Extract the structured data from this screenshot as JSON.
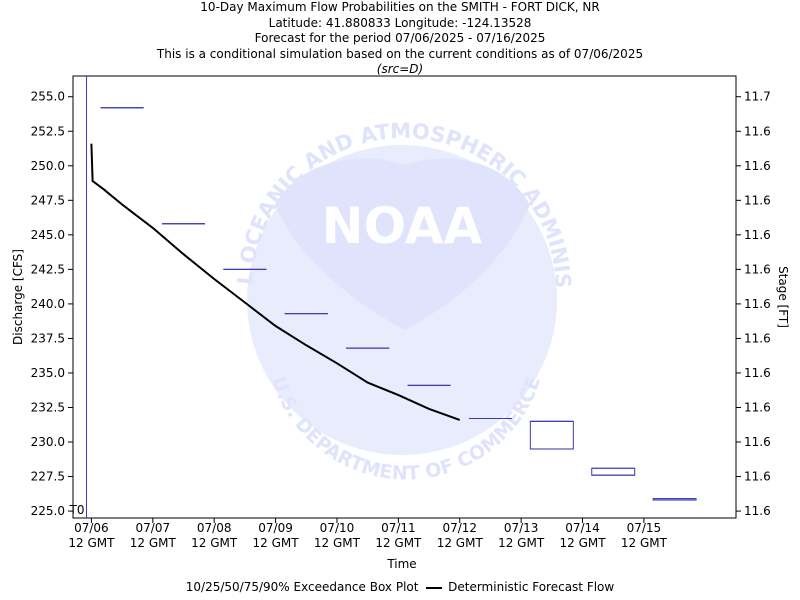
{
  "titles": [
    "10-Day Maximum Flow Probabilities on the SMITH - FORT DICK, NR",
    "Latitude: 41.880833 Longitude: -124.13528",
    "Forecast for the period 07/06/2025 - 07/16/2025",
    "This is a conditional simulation based on the current conditions as of 07/06/2025"
  ],
  "source_note": "(src=D)",
  "watermark": {
    "center_text": "NOAA",
    "ring_text": "NATIONAL OCEANIC AND ATMOSPHERIC ADMINISTRATION",
    "bottom_text": "U.S. DEPARTMENT OF COMMERCE",
    "color": "#dfe3fb"
  },
  "legend": {
    "boxplot_label": "10/25/50/75/90% Exceedance Box Plot",
    "line_label": "Deterministic Forecast Flow"
  },
  "chart_data": {
    "type": "line",
    "xlabel": "Time",
    "ylabel": "Discharge [CFS]",
    "y2label": "Stage [FT]",
    "ylim": [
      224.5,
      256.5
    ],
    "xlim": [
      -0.3,
      10.5
    ],
    "y_ticks": [
      225.0,
      227.5,
      230.0,
      232.5,
      235.0,
      237.5,
      240.0,
      242.5,
      245.0,
      247.5,
      250.0,
      252.5,
      255.0
    ],
    "y2_tick_labels": [
      "11.6",
      "11.6",
      "11.6",
      "11.6",
      "11.6",
      "11.6",
      "11.6",
      "11.6",
      "11.6",
      "11.6",
      "11.6",
      "11.6",
      "11.7"
    ],
    "x_ticks": [
      {
        "x": 0,
        "date": "07/06",
        "time": "12 GMT"
      },
      {
        "x": 1,
        "date": "07/07",
        "time": "12 GMT"
      },
      {
        "x": 2,
        "date": "07/08",
        "time": "12 GMT"
      },
      {
        "x": 3,
        "date": "07/09",
        "time": "12 GMT"
      },
      {
        "x": 4,
        "date": "07/10",
        "time": "12 GMT"
      },
      {
        "x": 5,
        "date": "07/11",
        "time": "12 GMT"
      },
      {
        "x": 6,
        "date": "07/12",
        "time": "12 GMT"
      },
      {
        "x": 7,
        "date": "07/13",
        "time": "12 GMT"
      },
      {
        "x": 8,
        "date": "07/14",
        "time": "12 GMT"
      },
      {
        "x": 9,
        "date": "07/15",
        "time": "12 GMT"
      }
    ],
    "t0_label": "T0",
    "t0_x": -0.08,
    "deterministic_flow": [
      {
        "x": 0.0,
        "y": 251.6
      },
      {
        "x": 0.02,
        "y": 248.9
      },
      {
        "x": 0.2,
        "y": 248.3
      },
      {
        "x": 0.5,
        "y": 247.2
      },
      {
        "x": 1.0,
        "y": 245.5
      },
      {
        "x": 1.5,
        "y": 243.6
      },
      {
        "x": 2.0,
        "y": 241.8
      },
      {
        "x": 2.5,
        "y": 240.1
      },
      {
        "x": 3.0,
        "y": 238.4
      },
      {
        "x": 3.5,
        "y": 237.0
      },
      {
        "x": 4.0,
        "y": 235.7
      },
      {
        "x": 4.5,
        "y": 234.3
      },
      {
        "x": 5.0,
        "y": 233.4
      },
      {
        "x": 5.5,
        "y": 232.4
      },
      {
        "x": 6.0,
        "y": 231.6
      }
    ],
    "boxplots": [
      {
        "day": 0,
        "values": [
          254.2,
          254.2,
          254.2,
          254.2,
          254.2
        ]
      },
      {
        "day": 1,
        "values": [
          245.8,
          245.8,
          245.8,
          245.8,
          245.8
        ]
      },
      {
        "day": 2,
        "values": [
          242.5,
          242.5,
          242.5,
          242.5,
          242.5
        ]
      },
      {
        "day": 3,
        "values": [
          239.3,
          239.3,
          239.3,
          239.3,
          239.3
        ]
      },
      {
        "day": 4,
        "values": [
          236.8,
          236.8,
          236.8,
          236.8,
          236.8
        ]
      },
      {
        "day": 5,
        "values": [
          234.1,
          234.1,
          234.1,
          234.1,
          234.1
        ]
      },
      {
        "day": 6,
        "values": [
          231.7,
          231.7,
          231.7,
          231.7,
          231.7
        ]
      },
      {
        "day": 7,
        "values": [
          229.5,
          229.5,
          231.5,
          231.5,
          231.5
        ]
      },
      {
        "day": 8,
        "values": [
          227.6,
          227.6,
          227.6,
          228.1,
          228.1
        ]
      },
      {
        "day": 9,
        "values": [
          225.8,
          225.8,
          225.8,
          225.9,
          225.9
        ]
      }
    ],
    "grid": false,
    "legend_position": "bottom",
    "colors": {
      "line": "#000000",
      "boxplot": "#3b3bb8",
      "t0_line": "#3b3bb8"
    }
  }
}
